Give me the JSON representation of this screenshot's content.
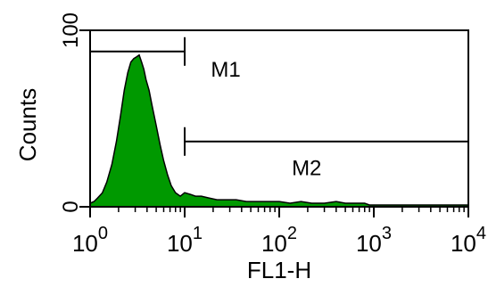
{
  "chart_data": {
    "type": "area",
    "xlabel": "FL1-H",
    "ylabel": "Counts",
    "x_scale": "log",
    "xlim": [
      1,
      10000
    ],
    "ylim": [
      0,
      100
    ],
    "x_ticks": [
      {
        "value": 1,
        "base": "10",
        "exp": "0"
      },
      {
        "value": 10,
        "base": "10",
        "exp": "1"
      },
      {
        "value": 100,
        "base": "10",
        "exp": "2"
      },
      {
        "value": 1000,
        "base": "10",
        "exp": "3"
      },
      {
        "value": 10000,
        "base": "10",
        "exp": "4"
      }
    ],
    "y_ticks": [
      {
        "value": 0,
        "label": "0"
      },
      {
        "value": 100,
        "label": "100"
      }
    ],
    "fill_color": "#009900",
    "series": [
      {
        "x": [
          1,
          1.1,
          1.2,
          1.35,
          1.5,
          1.7,
          1.9,
          2.1,
          2.3,
          2.5,
          2.7,
          2.9,
          3.1,
          3.3,
          3.5,
          3.7,
          3.9,
          4.2,
          4.5,
          5.0,
          5.5,
          6.0,
          6.6,
          7.2,
          8.0,
          9.0,
          10.0,
          11.5,
          13,
          15,
          18,
          22,
          28,
          35,
          45,
          60,
          80,
          100,
          130,
          170,
          220,
          300,
          400,
          500,
          600,
          700,
          800,
          900,
          1000,
          2000,
          5000,
          10000
        ],
        "y": [
          2,
          3,
          5,
          8,
          14,
          24,
          37,
          52,
          66,
          76,
          82,
          84,
          85,
          86,
          82,
          78,
          72,
          66,
          58,
          46,
          35,
          26,
          18,
          12,
          8,
          6,
          8,
          7,
          6,
          6,
          5,
          4,
          4,
          4,
          3,
          3,
          3,
          3,
          2,
          3,
          2,
          2,
          3,
          2,
          2,
          2,
          2,
          1,
          1,
          1,
          1,
          1
        ]
      }
    ],
    "markers": [
      {
        "label": "M1",
        "x_start": 1,
        "x_end": 10,
        "y": 88
      },
      {
        "label": "M2",
        "x_start": 10,
        "x_end": 10000,
        "y": 37
      }
    ]
  }
}
